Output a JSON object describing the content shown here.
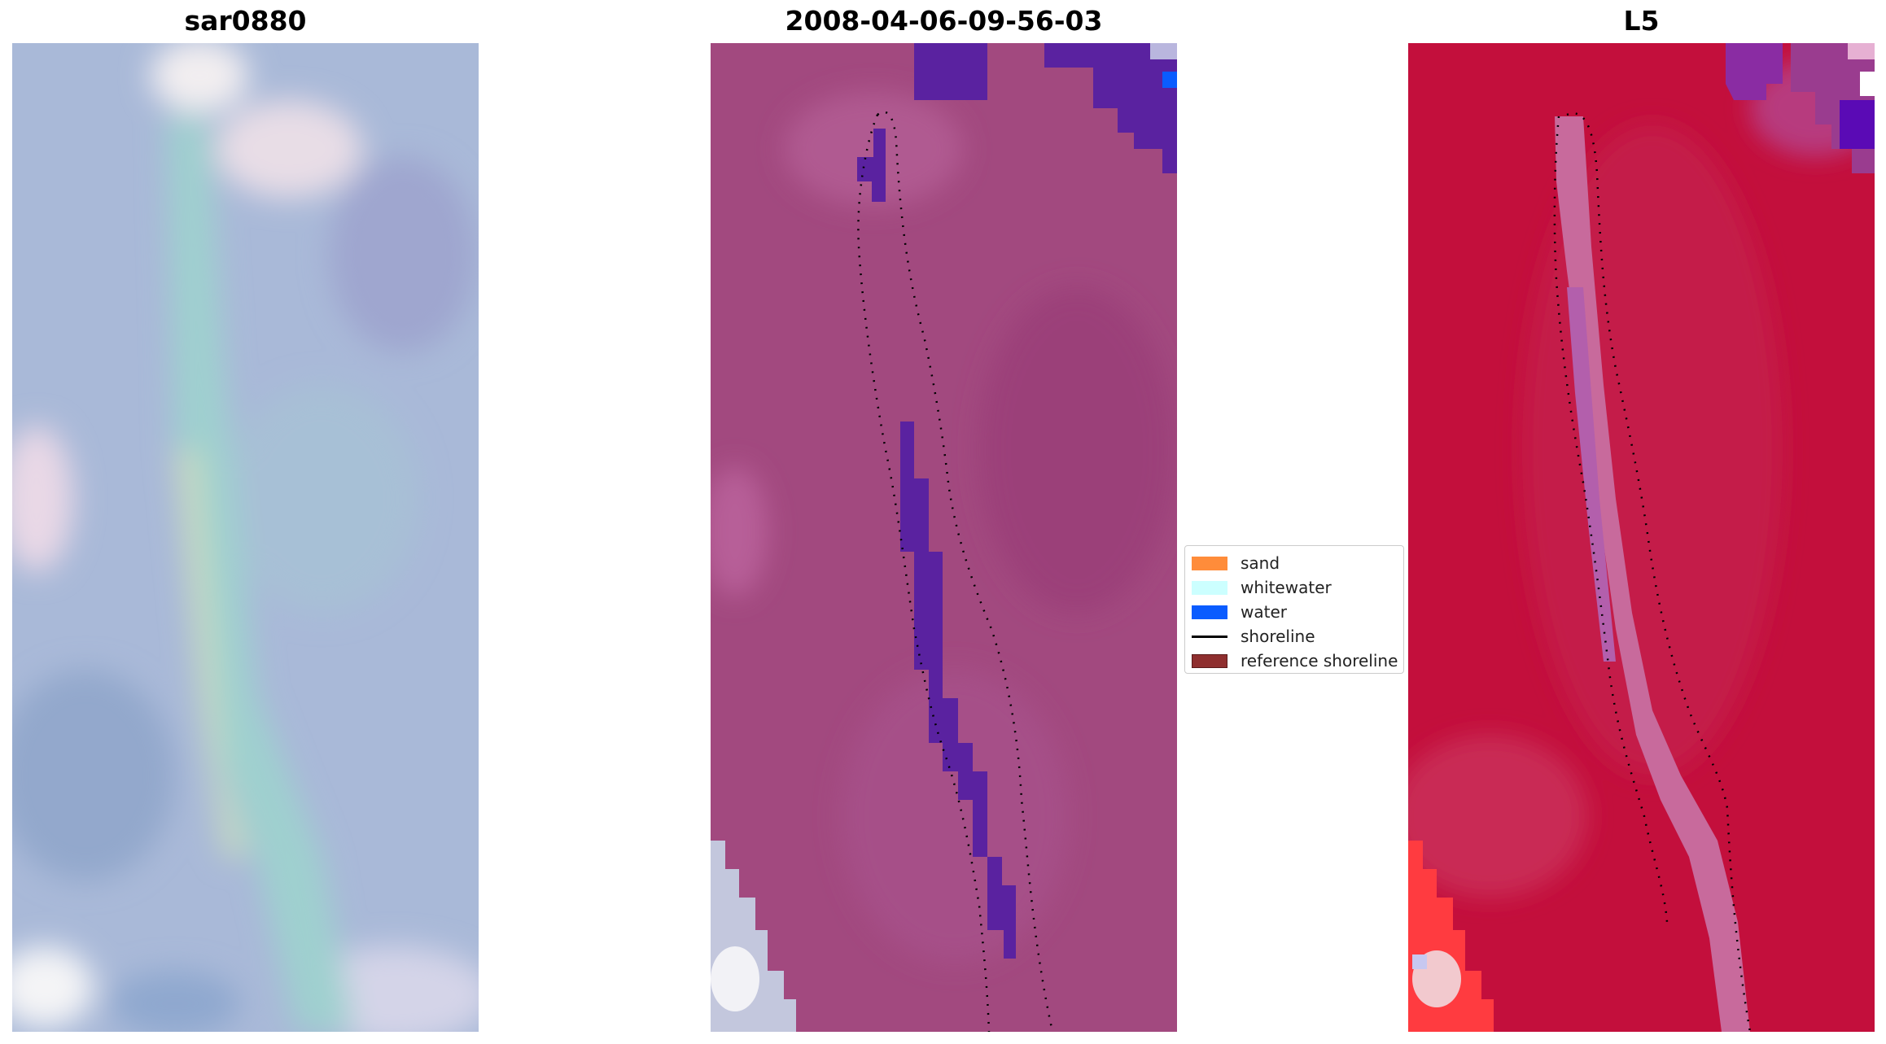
{
  "panels": [
    {
      "title": "sar0880",
      "style": "rgb"
    },
    {
      "title": "2008-04-06-09-56-03",
      "style": "classified"
    },
    {
      "title": "L5",
      "style": "false-color"
    }
  ],
  "legend": {
    "items": [
      {
        "label": "sand",
        "color": "#ff8c3a",
        "kind": "patch"
      },
      {
        "label": "whitewater",
        "color": "#ccffff",
        "kind": "patch"
      },
      {
        "label": "water",
        "color": "#0a5cff",
        "kind": "patch"
      },
      {
        "label": "shoreline",
        "color": "#000000",
        "kind": "line"
      },
      {
        "label": "reference shoreline",
        "color": "#8f2f2f",
        "kind": "patch"
      }
    ]
  },
  "colors": {
    "rgb_base": "#a8b8d6",
    "classified_base": "#a2497f",
    "false_color_base": "#c30f3c",
    "classified_water": "#5a22a0"
  }
}
